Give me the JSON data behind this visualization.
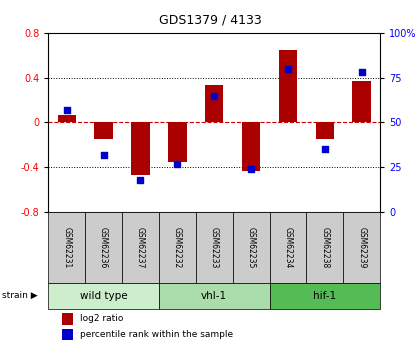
{
  "title": "GDS1379 / 4133",
  "samples": [
    "GSM62231",
    "GSM62236",
    "GSM62237",
    "GSM62232",
    "GSM62233",
    "GSM62235",
    "GSM62234",
    "GSM62238",
    "GSM62239"
  ],
  "log2_ratio": [
    0.07,
    -0.15,
    -0.47,
    -0.35,
    0.33,
    -0.43,
    0.65,
    -0.15,
    0.37
  ],
  "percentile_rank": [
    57,
    32,
    18,
    27,
    65,
    24,
    80,
    35,
    78
  ],
  "groups": [
    {
      "label": "wild type",
      "indices": [
        0,
        1,
        2
      ],
      "color": "#cceecc"
    },
    {
      "label": "vhl-1",
      "indices": [
        3,
        4,
        5
      ],
      "color": "#aaddaa"
    },
    {
      "label": "hif-1",
      "indices": [
        6,
        7,
        8
      ],
      "color": "#55bb55"
    }
  ],
  "ylim_left": [
    -0.8,
    0.8
  ],
  "ylim_right": [
    0,
    100
  ],
  "yticks_left": [
    -0.8,
    -0.4,
    0.0,
    0.4,
    0.8
  ],
  "yticks_right": [
    0,
    25,
    50,
    75,
    100
  ],
  "bar_color": "#aa0000",
  "dot_color": "#0000cc",
  "plot_bg": "#ffffff",
  "sample_box_color": "#cccccc",
  "legend_items": [
    "log2 ratio",
    "percentile rank within the sample"
  ],
  "zero_line_color": "#cc0000",
  "grid_line_color": "#000000"
}
